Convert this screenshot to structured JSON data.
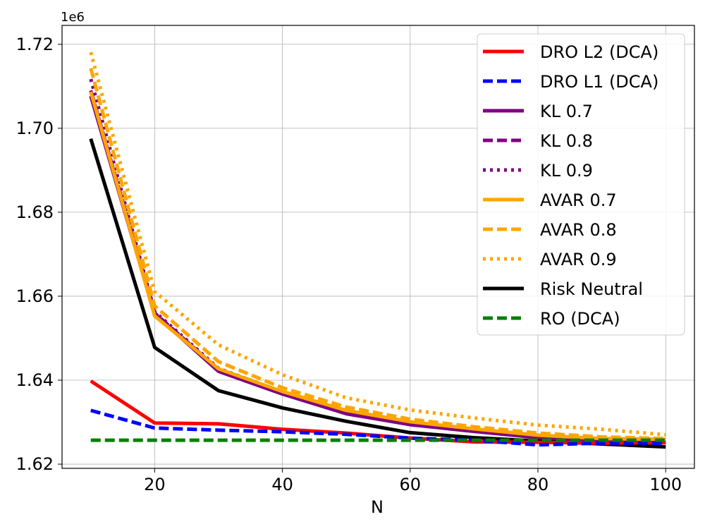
{
  "chart_data": {
    "type": "line",
    "xlabel": "N",
    "ylabel": "",
    "y_offset_label": "1e6",
    "xlim": [
      5.5,
      104.5
    ],
    "ylim": [
      1.619,
      1.7245
    ],
    "xticks": [
      20,
      40,
      60,
      80,
      100
    ],
    "xtick_labels": [
      "20",
      "40",
      "60",
      "80",
      "100"
    ],
    "yticks": [
      1.62,
      1.64,
      1.66,
      1.68,
      1.7,
      1.72
    ],
    "ytick_labels": [
      "1.62",
      "1.64",
      "1.66",
      "1.68",
      "1.70",
      "1.72"
    ],
    "grid": true,
    "legend_position": "top-right",
    "x": [
      10,
      20,
      30,
      40,
      50,
      60,
      70,
      80,
      90,
      100
    ],
    "series": [
      {
        "name": "DRO L2 (DCA)",
        "color": "#ff0000",
        "style": "solid",
        "values": [
          1.6398,
          1.6298,
          1.6296,
          1.6283,
          1.6274,
          1.6262,
          1.6253,
          1.6252,
          1.625,
          1.6251
        ]
      },
      {
        "name": "DRO L1 (DCA)",
        "color": "#0000ff",
        "style": "dashed",
        "values": [
          1.6328,
          1.6286,
          1.6281,
          1.6277,
          1.6271,
          1.6262,
          1.6257,
          1.6246,
          1.625,
          1.625
        ]
      },
      {
        "name": "KL 0.7",
        "color": "#800080",
        "style": "solid",
        "values": [
          1.7077,
          1.6557,
          1.6421,
          1.6367,
          1.632,
          1.6294,
          1.6278,
          1.6263,
          1.6255,
          1.6253
        ]
      },
      {
        "name": "KL 0.8",
        "color": "#800080",
        "style": "dashed",
        "values": [
          1.709,
          1.656,
          1.6425,
          1.637,
          1.6323,
          1.6296,
          1.628,
          1.6265,
          1.6257,
          1.6255
        ]
      },
      {
        "name": "KL 0.9",
        "color": "#800080",
        "style": "dotted",
        "values": [
          1.7117,
          1.6563,
          1.6428,
          1.6372,
          1.6325,
          1.6298,
          1.6282,
          1.6267,
          1.6259,
          1.6257
        ]
      },
      {
        "name": "AVAR 0.7",
        "color": "#ffa500",
        "style": "solid",
        "values": [
          1.7087,
          1.6553,
          1.6427,
          1.6373,
          1.6328,
          1.6301,
          1.6284,
          1.6269,
          1.6261,
          1.6259
        ]
      },
      {
        "name": "AVAR 0.8",
        "color": "#ffa500",
        "style": "dashed",
        "values": [
          1.7143,
          1.6577,
          1.6444,
          1.6382,
          1.6336,
          1.6307,
          1.6289,
          1.6274,
          1.6265,
          1.6261
        ]
      },
      {
        "name": "AVAR 0.9",
        "color": "#ffa500",
        "style": "dotted",
        "values": [
          1.7181,
          1.6611,
          1.6484,
          1.6413,
          1.6358,
          1.6329,
          1.631,
          1.6293,
          1.6283,
          1.627
        ]
      },
      {
        "name": "Risk Neutral",
        "color": "#000000",
        "style": "solid",
        "values": [
          1.6975,
          1.6478,
          1.6375,
          1.6334,
          1.6302,
          1.6275,
          1.6263,
          1.6255,
          1.6248,
          1.6241
        ]
      },
      {
        "name": "RO (DCA)",
        "color": "#008000",
        "style": "dashed",
        "values": [
          1.6257,
          1.6257,
          1.6257,
          1.6257,
          1.6257,
          1.6257,
          1.6257,
          1.6257,
          1.6257,
          1.6257
        ]
      }
    ]
  }
}
